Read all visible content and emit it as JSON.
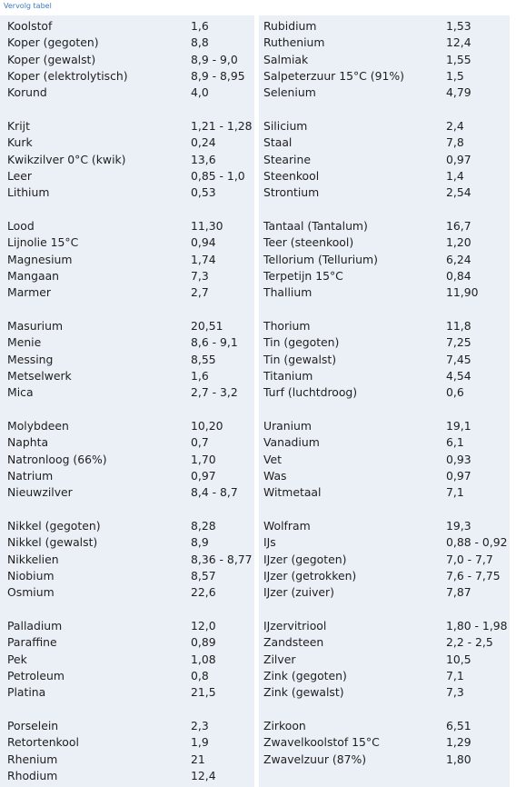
{
  "caption": "Vervolg tabel",
  "left": [
    [
      [
        "Koolstof",
        "1,6"
      ],
      [
        "Koper (gegoten)",
        "8,8"
      ],
      [
        "Koper (gewalst)",
        "8,9 - 9,0"
      ],
      [
        "Koper (elektrolytisch)",
        "8,9 - 8,95"
      ],
      [
        "Korund",
        "4,0"
      ]
    ],
    [
      [
        "Krijt",
        "1,21 - 1,28"
      ],
      [
        "Kurk",
        "0,24"
      ],
      [
        "Kwikzilver 0°C (kwik)",
        "13,6"
      ],
      [
        "Leer",
        "0,85 - 1,0"
      ],
      [
        "Lithium",
        "0,53"
      ]
    ],
    [
      [
        "Lood",
        "11,30"
      ],
      [
        "Lijnolie 15°C",
        "0,94"
      ],
      [
        "Magnesium",
        "1,74"
      ],
      [
        "Mangaan",
        "7,3"
      ],
      [
        "Marmer",
        "2,7"
      ]
    ],
    [
      [
        "Masurium",
        "20,51"
      ],
      [
        "Menie",
        "8,6 - 9,1"
      ],
      [
        "Messing",
        "8,55"
      ],
      [
        "Metselwerk",
        "1,6"
      ],
      [
        "Mica",
        "2,7 - 3,2"
      ]
    ],
    [
      [
        "Molybdeen",
        "10,20"
      ],
      [
        "Naphta",
        "0,7"
      ],
      [
        "Natronloog (66%)",
        "1,70"
      ],
      [
        "Natrium",
        "0,97"
      ],
      [
        "Nieuwzilver",
        "8,4 - 8,7"
      ]
    ],
    [
      [
        "Nikkel (gegoten)",
        "8,28"
      ],
      [
        "Nikkel (gewalst)",
        "8,9"
      ],
      [
        "Nikkelien",
        "8,36 - 8,77"
      ],
      [
        "Niobium",
        "8,57"
      ],
      [
        "Osmium",
        "22,6"
      ]
    ],
    [
      [
        "Palladium",
        "12,0"
      ],
      [
        "Paraffine",
        "0,89"
      ],
      [
        "Pek",
        "1,08"
      ],
      [
        "Petroleum",
        "0,8"
      ],
      [
        "Platina",
        "21,5"
      ]
    ],
    [
      [
        "Porselein",
        "2,3"
      ],
      [
        "Retortenkool",
        "1,9"
      ],
      [
        "Rhenium",
        "21"
      ],
      [
        "Rhodium",
        "12,4"
      ]
    ]
  ],
  "right": [
    [
      [
        "Rubidium",
        "1,53"
      ],
      [
        "Ruthenium",
        "12,4"
      ],
      [
        "Salmiak",
        "1,55"
      ],
      [
        "Salpeterzuur 15°C (91%)",
        "1,5"
      ],
      [
        "Selenium",
        "4,79"
      ]
    ],
    [
      [
        "Silicium",
        "2,4"
      ],
      [
        "Staal",
        "7,8"
      ],
      [
        "Stearine",
        "0,97"
      ],
      [
        "Steenkool",
        "1,4"
      ],
      [
        "Strontium",
        "2,54"
      ]
    ],
    [
      [
        "Tantaal (Tantalum)",
        "16,7"
      ],
      [
        "Teer (steenkool)",
        "1,20"
      ],
      [
        "Tellorium (Tellurium)",
        "6,24"
      ],
      [
        "Terpetijn 15°C",
        "0,84"
      ],
      [
        "Thallium",
        "11,90"
      ]
    ],
    [
      [
        "Thorium",
        "11,8"
      ],
      [
        "Tin (gegoten)",
        "7,25"
      ],
      [
        "Tin (gewalst)",
        "7,45"
      ],
      [
        "Titanium",
        "4,54"
      ],
      [
        "Turf (luchtdroog)",
        "0,6"
      ]
    ],
    [
      [
        "Uranium",
        "19,1"
      ],
      [
        "Vanadium",
        "6,1"
      ],
      [
        "Vet",
        "0,93"
      ],
      [
        "Was",
        "0,97"
      ],
      [
        "Witmetaal",
        "7,1"
      ]
    ],
    [
      [
        "Wolfram",
        "19,3"
      ],
      [
        "IJs",
        "0,88 - 0,92"
      ],
      [
        "IJzer (gegoten)",
        "7,0 - 7,7"
      ],
      [
        "IJzer (getrokken)",
        "7,6 - 7,75"
      ],
      [
        "IJzer (zuiver)",
        "7,87"
      ]
    ],
    [
      [
        "IJzervitriool",
        "1,80 - 1,98"
      ],
      [
        "Zandsteen",
        "2,2 - 2,5"
      ],
      [
        "Zilver",
        "10,5"
      ],
      [
        "Zink (gegoten)",
        "7,1"
      ],
      [
        "Zink (gewalst)",
        "7,3"
      ]
    ],
    [
      [
        "Zirkoon",
        "6,51"
      ],
      [
        "Zwavelkoolstof 15°C",
        "1,29"
      ],
      [
        "Zwavelzuur (87%)",
        "1,80"
      ]
    ]
  ]
}
